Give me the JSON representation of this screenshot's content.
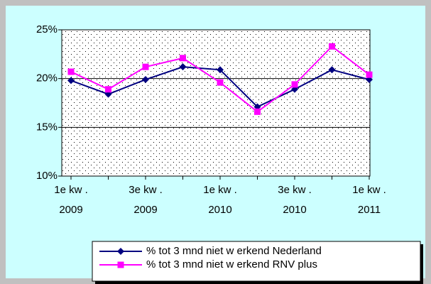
{
  "chart_data": {
    "type": "line",
    "categories": [
      "1e kw . 2009",
      null,
      "3e kw . 2009",
      null,
      "1e kw . 2010",
      null,
      "3e kw . 2010",
      null,
      "1e kw . 2011"
    ],
    "series": [
      {
        "name": "% tot 3 mnd niet w erkend Nederland",
        "color": "#000080",
        "marker": "diamond",
        "values": [
          19.8,
          18.4,
          19.9,
          21.2,
          20.9,
          17.1,
          18.9,
          20.9,
          19.9
        ]
      },
      {
        "name": "% tot 3 mnd niet w erkend RNV plus",
        "color": "#ff00ff",
        "marker": "square",
        "values": [
          20.7,
          18.9,
          21.2,
          22.1,
          19.6,
          16.6,
          19.4,
          23.3,
          20.4
        ]
      }
    ],
    "ylim": [
      10,
      25
    ],
    "yticks": [
      {
        "value": 10,
        "label": "10%"
      },
      {
        "value": 15,
        "label": "15%"
      },
      {
        "value": 20,
        "label": "20%"
      },
      {
        "value": 25,
        "label": "25%"
      }
    ],
    "grid": true,
    "legend": "bottom"
  }
}
